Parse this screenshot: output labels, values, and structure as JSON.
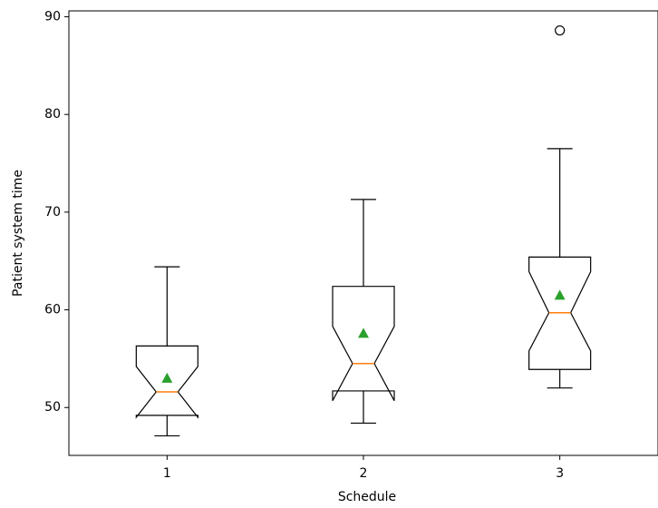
{
  "chart_data": {
    "type": "box",
    "xlabel": "Schedule",
    "ylabel": "Patient system time",
    "categories": [
      "1",
      "2",
      "3"
    ],
    "whisker_low": [
      47.1,
      48.4,
      52.0
    ],
    "q1": [
      49.2,
      51.7,
      53.9
    ],
    "median": [
      51.6,
      54.5,
      59.7
    ],
    "q3": [
      56.3,
      62.4,
      65.4
    ],
    "whisker_high": [
      64.4,
      71.3,
      76.5
    ],
    "mean": [
      53.0,
      57.6,
      61.5
    ],
    "notch_low": [
      49.0,
      50.7,
      55.8
    ],
    "notch_high": [
      54.2,
      58.3,
      63.9
    ],
    "outliers": [
      [],
      [],
      [
        88.6
      ]
    ],
    "box_color": "#000000",
    "median_color": "#ff7f0e",
    "mean_color": "#2ca02c",
    "ylim": [
      45.1,
      90.6
    ],
    "yticks": [
      50,
      60,
      70,
      80,
      90
    ]
  }
}
